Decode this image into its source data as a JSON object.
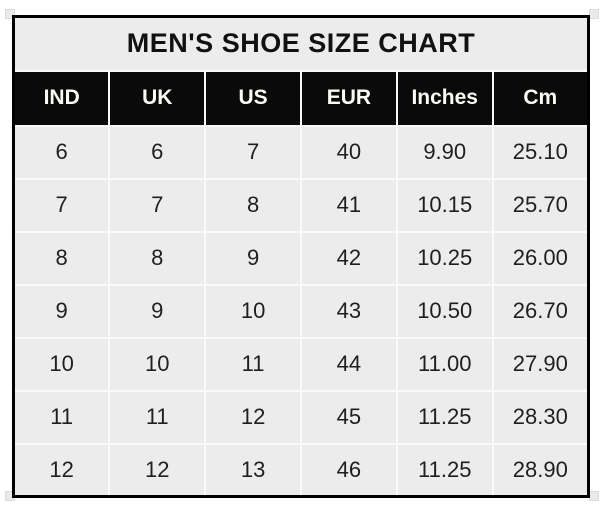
{
  "title": "MEN'S SHOE SIZE CHART",
  "table": {
    "headers": [
      "IND",
      "UK",
      "US",
      "EUR",
      "Inches",
      "Cm"
    ],
    "rows": [
      [
        "6",
        "6",
        "7",
        "40",
        "9.90",
        "25.10"
      ],
      [
        "7",
        "7",
        "8",
        "41",
        "10.15",
        "25.70"
      ],
      [
        "8",
        "8",
        "9",
        "42",
        "10.25",
        "26.00"
      ],
      [
        "9",
        "9",
        "10",
        "43",
        "10.50",
        "26.70"
      ],
      [
        "10",
        "10",
        "11",
        "44",
        "11.00",
        "27.90"
      ],
      [
        "11",
        "11",
        "12",
        "45",
        "11.25",
        "28.30"
      ],
      [
        "12",
        "12",
        "13",
        "46",
        "11.25",
        "28.90"
      ]
    ]
  },
  "colors": {
    "page_bg": "#ffffff",
    "table_bg": "#ececec",
    "header_bg": "#0a0a0a",
    "header_text": "#fcfcf5",
    "grid_line": "#fafafa",
    "outer_border": "#000000",
    "cell_text": "#1f1f1f",
    "title_text": "#111111"
  }
}
